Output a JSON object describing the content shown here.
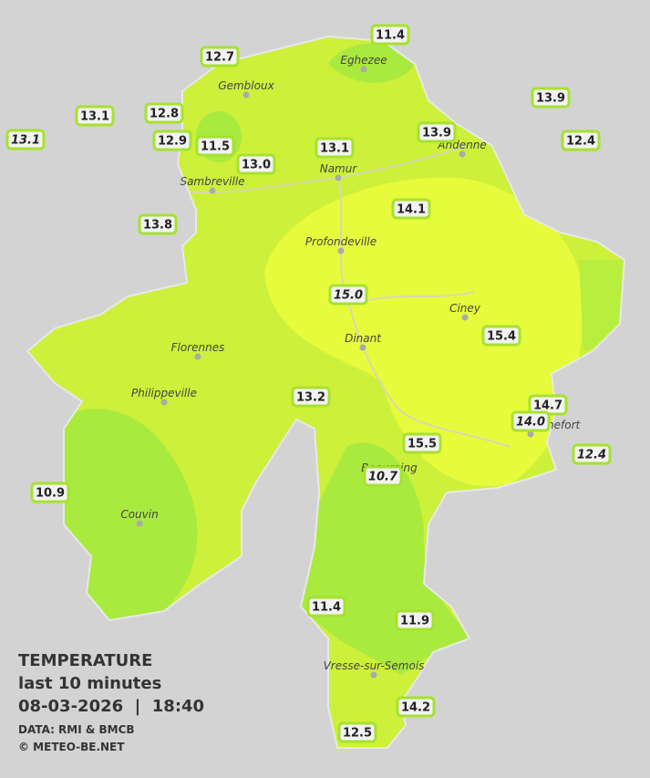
{
  "header": {
    "title": "TEMPERATURE",
    "subtitle": "last 10 minutes",
    "datetime": "08-03-2026  |  18:40",
    "source": "DATA: RMI & BMCB",
    "credit": "© METEO-BE.NET"
  },
  "towns": [
    "Eghezee",
    "Gembloux",
    "Andenne",
    "Namur",
    "Sambreville",
    "Profondeville",
    "Ciney",
    "Florennes",
    "Dinant",
    "Philippeville",
    "Rochefort",
    "Beauraing",
    "Couvin",
    "Vresse-sur-Semois"
  ],
  "stations": [
    {
      "label": "11.4"
    },
    {
      "label": "12.7"
    },
    {
      "label": "13.9"
    },
    {
      "label": "13.1"
    },
    {
      "label": "12.8"
    },
    {
      "label": "13.1",
      "italic": true
    },
    {
      "label": "12.9"
    },
    {
      "label": "11.5"
    },
    {
      "label": "13.1"
    },
    {
      "label": "13.9"
    },
    {
      "label": "12.4"
    },
    {
      "label": "13.0"
    },
    {
      "label": "13.8"
    },
    {
      "label": "14.1"
    },
    {
      "label": "15.0",
      "italic": true
    },
    {
      "label": "15.4"
    },
    {
      "label": "13.2"
    },
    {
      "label": "14.7"
    },
    {
      "label": "14.0",
      "italic": true
    },
    {
      "label": "12.4",
      "italic": true
    },
    {
      "label": "15.5"
    },
    {
      "label": "10.7",
      "italic": true
    },
    {
      "label": "10.9"
    },
    {
      "label": "11.4"
    },
    {
      "label": "11.9"
    },
    {
      "label": "14.2"
    },
    {
      "label": "12.5"
    }
  ]
}
